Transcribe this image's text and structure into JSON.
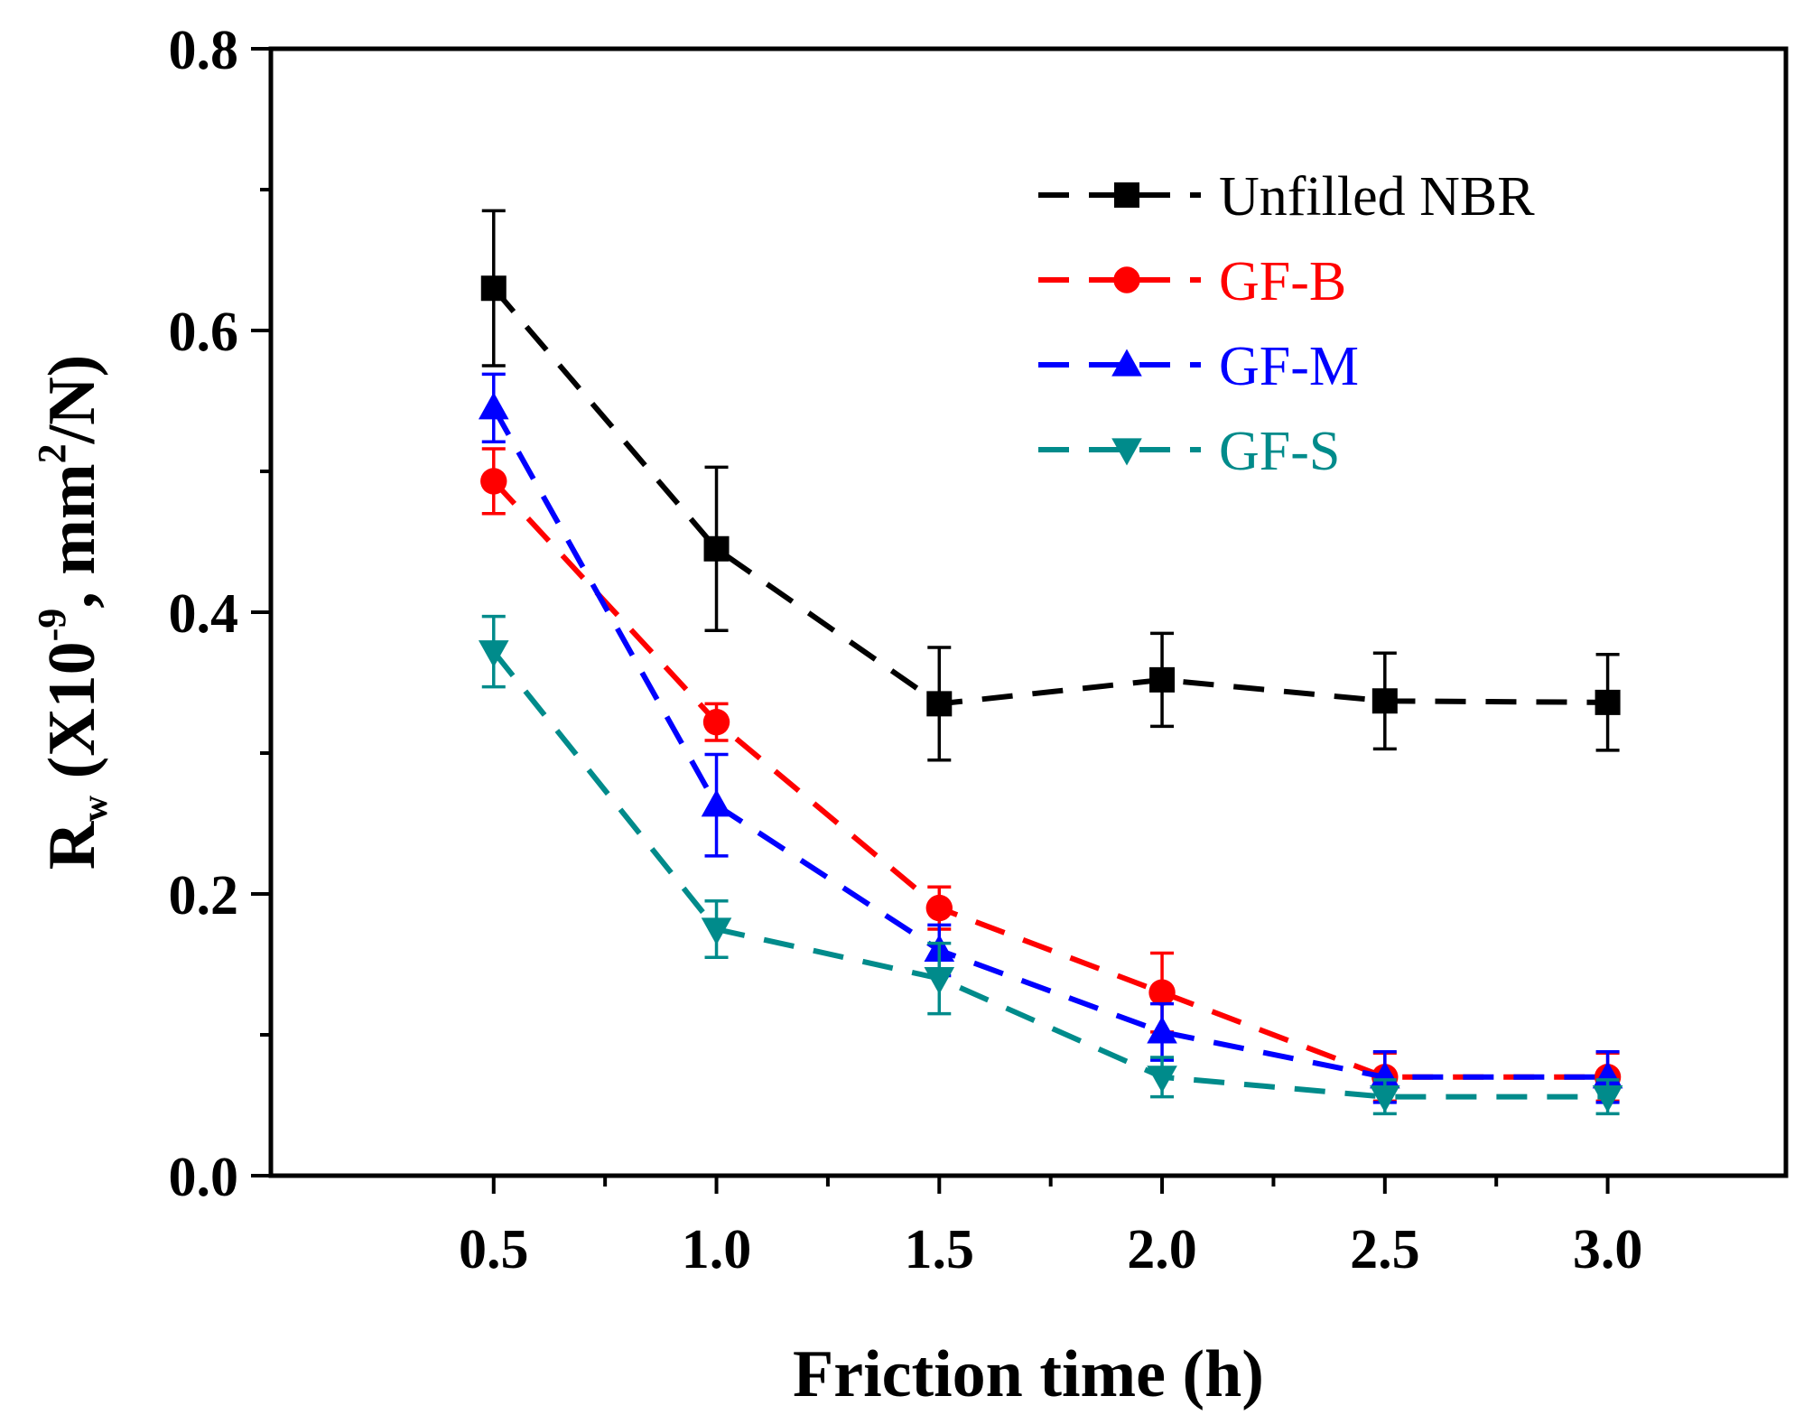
{
  "chart_data": {
    "type": "line",
    "title": "",
    "xlabel": "Friction time (h)",
    "ylabel": {
      "base": "R",
      "sub": "w",
      "open": " (X10",
      "exp": "-9",
      "mid": ", mm",
      "exp2": "2",
      "close": "/N)"
    },
    "xlim": [
      0.0,
      3.4
    ],
    "ylim": [
      0.0,
      0.8
    ],
    "xticks": [
      0.5,
      1.0,
      1.5,
      2.0,
      2.5,
      3.0
    ],
    "xtick_labels": [
      "0.5",
      "1.0",
      "1.5",
      "2.0",
      "2.5",
      "3.0"
    ],
    "yticks": [
      0.0,
      0.2,
      0.4,
      0.6,
      0.8
    ],
    "ytick_labels": [
      "0.0",
      "0.2",
      "0.4",
      "0.6",
      "0.8"
    ],
    "grid": false,
    "legend_position": "top-right",
    "x": [
      0.5,
      1.0,
      1.5,
      2.0,
      2.5,
      3.0
    ],
    "series": [
      {
        "name": "Unfilled NBR",
        "color": "#000000",
        "marker": "square",
        "values": [
          0.63,
          0.445,
          0.335,
          0.352,
          0.337,
          0.336
        ],
        "errors": [
          0.055,
          0.058,
          0.04,
          0.033,
          0.034,
          0.034
        ]
      },
      {
        "name": "GF-B",
        "color": "#ff0000",
        "marker": "circle",
        "values": [
          0.493,
          0.322,
          0.19,
          0.13,
          0.07,
          0.07
        ],
        "errors": [
          0.023,
          0.013,
          0.015,
          0.028,
          0.017,
          0.017
        ]
      },
      {
        "name": "GF-M",
        "color": "#0000ff",
        "marker": "triangle-up",
        "values": [
          0.545,
          0.263,
          0.16,
          0.102,
          0.07,
          0.07
        ],
        "errors": [
          0.024,
          0.036,
          0.018,
          0.02,
          0.018,
          0.018
        ]
      },
      {
        "name": "GF-S",
        "color": "#008b8b",
        "marker": "triangle-down",
        "values": [
          0.372,
          0.175,
          0.14,
          0.07,
          0.056,
          0.056
        ],
        "errors": [
          0.025,
          0.02,
          0.025,
          0.014,
          0.012,
          0.012
        ]
      }
    ]
  }
}
